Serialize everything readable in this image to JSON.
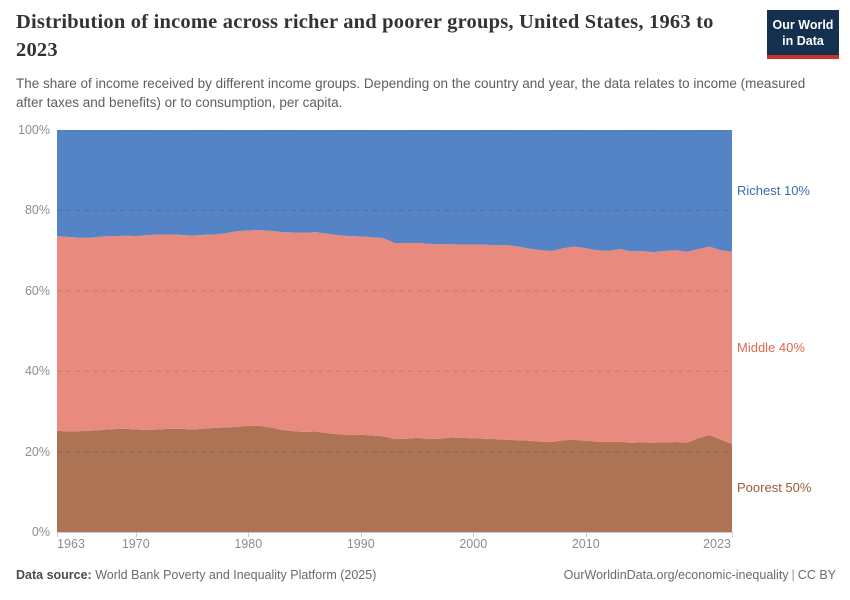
{
  "header": {
    "title": "Distribution of income across richer and poorer groups, United States, 1963 to 2023",
    "subtitle": "The share of income received by different income groups. Depending on the country and year, the data relates to income (measured after taxes and benefits) or to consumption, per capita.",
    "logo_line1": "Our World",
    "logo_line2": "in Data",
    "logo_bg_color": "#14304f",
    "logo_accent_color": "#cc302b"
  },
  "chart_data": {
    "type": "area",
    "stacked": true,
    "title": "Distribution of income across richer and poorer groups, United States, 1963 to 2023",
    "xlabel": "",
    "ylabel": "",
    "x_range": [
      1963,
      2023
    ],
    "ylim": [
      0,
      100
    ],
    "grid": "dashed-horizontal",
    "legend_position": "right-edge-labels",
    "x": [
      1963,
      1964,
      1965,
      1966,
      1967,
      1968,
      1969,
      1970,
      1971,
      1972,
      1973,
      1974,
      1975,
      1976,
      1977,
      1978,
      1979,
      1980,
      1981,
      1982,
      1983,
      1984,
      1985,
      1986,
      1987,
      1988,
      1989,
      1990,
      1991,
      1992,
      1993,
      1994,
      1995,
      1996,
      1997,
      1998,
      1999,
      2000,
      2001,
      2002,
      2003,
      2004,
      2005,
      2006,
      2007,
      2008,
      2009,
      2010,
      2011,
      2012,
      2013,
      2014,
      2015,
      2016,
      2017,
      2018,
      2019,
      2020,
      2021,
      2022,
      2023
    ],
    "series": [
      {
        "key": "poorest-50",
        "name": "Poorest 50%",
        "color": "#ad7355",
        "label_color": "#9d5b33",
        "values": [
          25.2,
          25.0,
          25.1,
          25.2,
          25.4,
          25.6,
          25.7,
          25.5,
          25.4,
          25.5,
          25.7,
          25.7,
          25.5,
          25.7,
          25.9,
          26.0,
          26.2,
          26.4,
          26.4,
          26.0,
          25.4,
          25.1,
          24.9,
          25.0,
          24.6,
          24.3,
          24.1,
          24.2,
          24.0,
          23.8,
          23.1,
          23.2,
          23.4,
          23.1,
          23.2,
          23.5,
          23.4,
          23.3,
          23.2,
          23.1,
          22.9,
          22.8,
          22.7,
          22.5,
          22.4,
          22.8,
          22.9,
          22.7,
          22.5,
          22.4,
          22.5,
          22.2,
          22.3,
          22.2,
          22.3,
          22.4,
          22.2,
          23.3,
          24.1,
          23.0,
          21.9
        ]
      },
      {
        "key": "middle-40",
        "name": "Middle 40%",
        "color": "#e98a7e",
        "label_color": "#dd6a50",
        "values": [
          48.4,
          48.4,
          48.1,
          48.0,
          48.1,
          48.0,
          48.0,
          48.1,
          48.4,
          48.5,
          48.3,
          48.2,
          48.2,
          48.2,
          48.1,
          48.3,
          48.6,
          48.6,
          48.7,
          48.9,
          49.2,
          49.4,
          49.5,
          49.6,
          49.6,
          49.5,
          49.5,
          49.3,
          49.3,
          49.3,
          48.8,
          48.7,
          48.5,
          48.6,
          48.4,
          48.1,
          48.1,
          48.2,
          48.3,
          48.2,
          48.5,
          48.2,
          47.8,
          47.6,
          47.5,
          47.8,
          48.1,
          47.9,
          47.6,
          47.5,
          47.9,
          47.6,
          47.6,
          47.4,
          47.6,
          47.7,
          47.5,
          47.1,
          46.9,
          47.1,
          47.8
        ]
      },
      {
        "key": "richest-10",
        "name": "Richest 10%",
        "color": "#5584c6",
        "label_color": "#3e6bb1",
        "values": [
          26.4,
          26.6,
          26.8,
          26.8,
          26.5,
          26.4,
          26.3,
          26.4,
          26.2,
          26.0,
          26.0,
          26.1,
          26.3,
          26.1,
          26.0,
          25.7,
          25.2,
          25.0,
          24.9,
          25.1,
          25.4,
          25.5,
          25.6,
          25.4,
          25.8,
          26.2,
          26.4,
          26.5,
          26.7,
          26.9,
          28.1,
          28.1,
          28.1,
          28.3,
          28.4,
          28.4,
          28.5,
          28.5,
          28.5,
          28.7,
          28.6,
          29.0,
          29.5,
          29.9,
          30.1,
          29.4,
          29.0,
          29.4,
          29.9,
          30.1,
          29.6,
          30.2,
          30.1,
          30.4,
          30.1,
          29.9,
          30.3,
          29.6,
          29.0,
          29.9,
          30.3
        ]
      }
    ],
    "y_ticks": [
      {
        "v": 100,
        "label": "100%"
      },
      {
        "v": 80,
        "label": "80%"
      },
      {
        "v": 60,
        "label": "60%"
      },
      {
        "v": 40,
        "label": "40%"
      },
      {
        "v": 20,
        "label": "20%"
      },
      {
        "v": 0,
        "label": "0%"
      }
    ],
    "x_ticks": [
      {
        "v": 1963,
        "label": "1963"
      },
      {
        "v": 1970,
        "label": "1970"
      },
      {
        "v": 1980,
        "label": "1980"
      },
      {
        "v": 1990,
        "label": "1990"
      },
      {
        "v": 2000,
        "label": "2000"
      },
      {
        "v": 2010,
        "label": "2010"
      },
      {
        "v": 2023,
        "label": "2023"
      }
    ],
    "grid_values": [
      20,
      40,
      60,
      80,
      100
    ]
  },
  "footer": {
    "source_label": "Data source:",
    "source_value": "World Bank Poverty and Inequality Platform (2025)",
    "url": "OurWorldinData.org/economic-inequality",
    "separator": "|",
    "license": "CC BY"
  }
}
